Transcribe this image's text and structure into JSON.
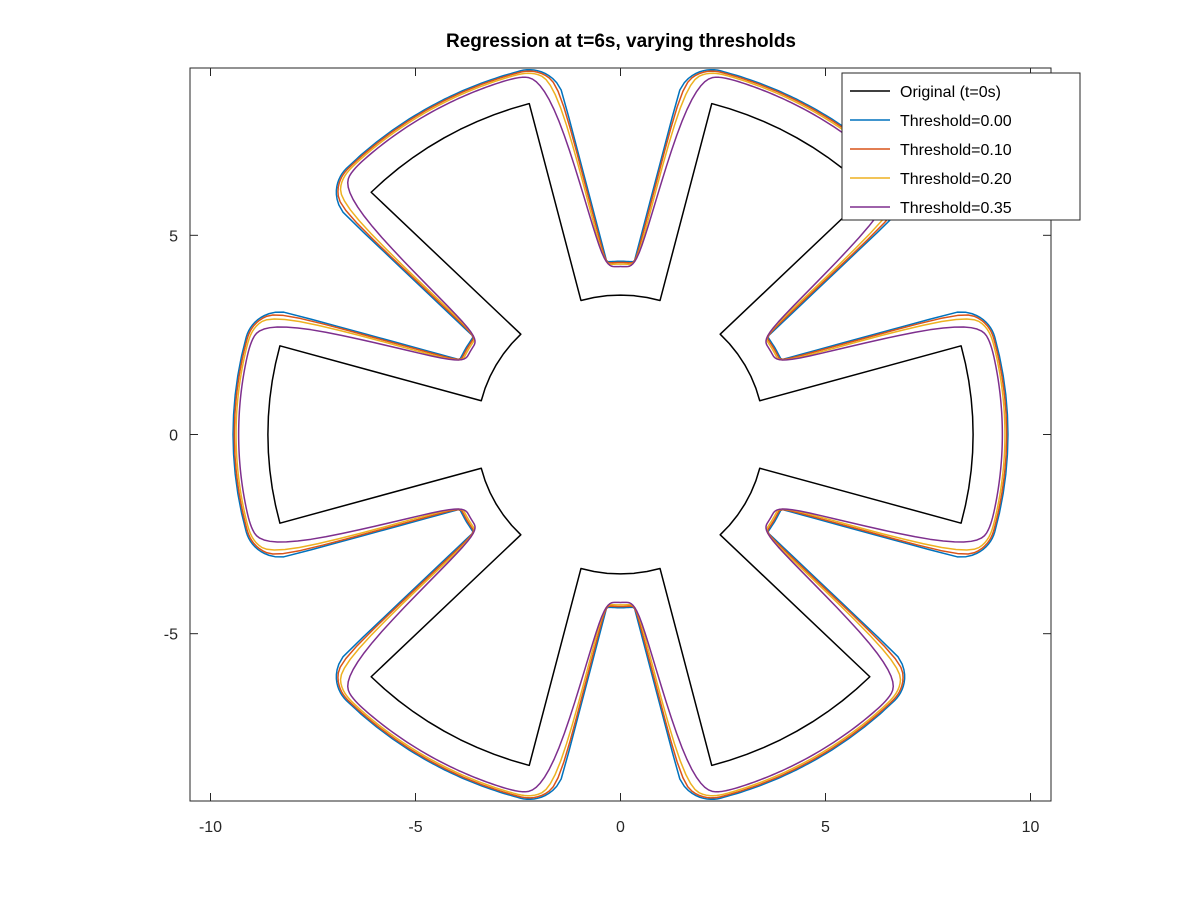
{
  "chart_data": {
    "type": "line",
    "title": "Regression at t=6s, varying thresholds",
    "xlabel": "",
    "ylabel": "",
    "xlim": [
      -10.5,
      10.5
    ],
    "ylim": [
      -9.2,
      9.2
    ],
    "xticks": [
      -10,
      -5,
      0,
      5,
      10
    ],
    "yticks": [
      -5,
      0,
      5
    ],
    "grid": false,
    "legend_position": "top-right",
    "shape": {
      "symmetry": 6,
      "original_inner_radius": 3.5,
      "original_outer_radius": 8.6,
      "original_tooth_half_angle_inner_deg": 14,
      "original_tooth_half_angle_outer_deg": 15
    },
    "series": [
      {
        "name": "Original (t=0s)",
        "color": "#000000",
        "offset": 0.0,
        "round": 0.0
      },
      {
        "name": "Threshold=0.00",
        "color": "#0072BD",
        "offset": 0.85,
        "round": 0.0
      },
      {
        "name": "Threshold=0.10",
        "color": "#D95319",
        "offset": 0.82,
        "round": 0.15
      },
      {
        "name": "Threshold=0.20",
        "color": "#EDB120",
        "offset": 0.78,
        "round": 0.3
      },
      {
        "name": "Threshold=0.35",
        "color": "#7E2F8E",
        "offset": 0.72,
        "round": 0.55
      }
    ]
  }
}
